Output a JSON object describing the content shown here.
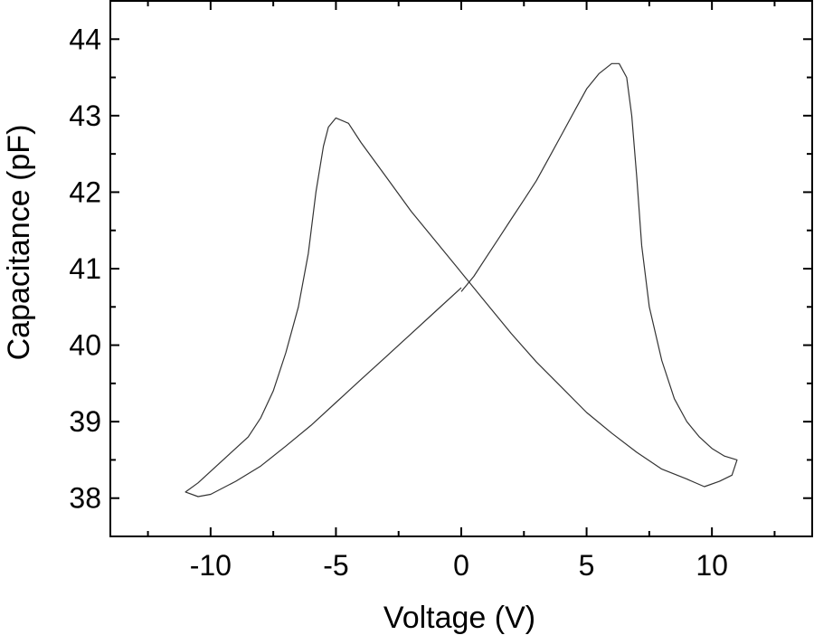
{
  "chart_data": {
    "type": "line",
    "title": "",
    "xlabel": "Voltage (V)",
    "ylabel": "Capacitance (pF)",
    "xlim": [
      -14.0,
      14.0
    ],
    "ylim": [
      37.5,
      44.5
    ],
    "x_ticks": [
      -10,
      -5,
      0,
      5,
      10
    ],
    "x_tick_labels": [
      "-10",
      "-5",
      "0",
      "5",
      "10"
    ],
    "x_minor_ticks": [
      -12.5,
      -7.5,
      -2.5,
      2.5,
      7.5,
      12.5
    ],
    "y_ticks": [
      38,
      39,
      40,
      41,
      42,
      43,
      44
    ],
    "y_tick_labels": [
      "38",
      "39",
      "40",
      "41",
      "42",
      "43",
      "44"
    ],
    "y_minor_ticks": [
      37.5,
      38.5,
      39.5,
      40.5,
      41.5,
      42.5,
      43.5
    ],
    "grid": false,
    "legend": "none",
    "line_color": "#333333",
    "series": [
      {
        "points": [
          [
            0.0,
            40.7
          ],
          [
            0.5,
            40.9
          ],
          [
            1.0,
            41.15
          ],
          [
            1.5,
            41.4
          ],
          [
            2.0,
            41.65
          ],
          [
            2.5,
            41.9
          ],
          [
            3.0,
            42.15
          ],
          [
            3.5,
            42.45
          ],
          [
            4.0,
            42.75
          ],
          [
            4.5,
            43.05
          ],
          [
            5.0,
            43.35
          ],
          [
            5.5,
            43.55
          ],
          [
            6.0,
            43.68
          ],
          [
            6.3,
            43.68
          ],
          [
            6.6,
            43.5
          ],
          [
            6.8,
            43.0
          ],
          [
            7.0,
            42.2
          ],
          [
            7.2,
            41.3
          ],
          [
            7.5,
            40.5
          ],
          [
            8.0,
            39.8
          ],
          [
            8.5,
            39.3
          ],
          [
            9.0,
            39.0
          ],
          [
            9.5,
            38.8
          ],
          [
            10.0,
            38.65
          ],
          [
            10.5,
            38.55
          ],
          [
            11.0,
            38.5
          ],
          [
            10.8,
            38.3
          ],
          [
            10.3,
            38.22
          ],
          [
            9.7,
            38.15
          ],
          [
            9.0,
            38.25
          ],
          [
            8.0,
            38.38
          ],
          [
            7.0,
            38.6
          ],
          [
            6.0,
            38.85
          ],
          [
            5.0,
            39.12
          ],
          [
            4.0,
            39.45
          ],
          [
            3.0,
            39.78
          ],
          [
            2.0,
            40.15
          ],
          [
            1.0,
            40.55
          ],
          [
            0.0,
            40.95
          ],
          [
            -1.0,
            41.35
          ],
          [
            -2.0,
            41.75
          ],
          [
            -3.0,
            42.2
          ],
          [
            -4.0,
            42.65
          ],
          [
            -4.5,
            42.9
          ],
          [
            -5.0,
            42.97
          ],
          [
            -5.3,
            42.85
          ],
          [
            -5.5,
            42.6
          ],
          [
            -5.8,
            42.0
          ],
          [
            -6.1,
            41.2
          ],
          [
            -6.5,
            40.5
          ],
          [
            -7.0,
            39.9
          ],
          [
            -7.5,
            39.4
          ],
          [
            -8.0,
            39.05
          ],
          [
            -8.5,
            38.8
          ],
          [
            -9.0,
            38.65
          ],
          [
            -9.5,
            38.5
          ],
          [
            -10.0,
            38.35
          ],
          [
            -10.5,
            38.2
          ],
          [
            -11.0,
            38.08
          ],
          [
            -10.5,
            38.02
          ],
          [
            -10.0,
            38.05
          ],
          [
            -9.0,
            38.22
          ],
          [
            -8.0,
            38.42
          ],
          [
            -7.0,
            38.68
          ],
          [
            -6.0,
            38.95
          ],
          [
            -5.0,
            39.25
          ],
          [
            -4.0,
            39.55
          ],
          [
            -3.0,
            39.85
          ],
          [
            -2.0,
            40.15
          ],
          [
            -1.0,
            40.45
          ],
          [
            0.0,
            40.75
          ]
        ]
      }
    ]
  }
}
